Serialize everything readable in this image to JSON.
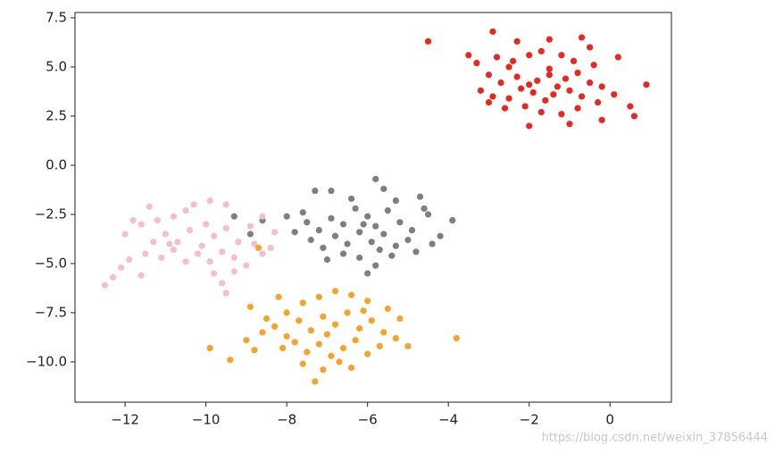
{
  "chart_data": {
    "type": "scatter",
    "xlim": [
      -13.24,
      1.52
    ],
    "ylim": [
      -12.05,
      7.77
    ],
    "xticks": [
      {
        "value": -12,
        "label": "−12"
      },
      {
        "value": -10,
        "label": "−10"
      },
      {
        "value": -8,
        "label": "−8"
      },
      {
        "value": -6,
        "label": "−6"
      },
      {
        "value": -4,
        "label": "−4"
      },
      {
        "value": -2,
        "label": "−2"
      },
      0
    ],
    "yticks": [
      7.5,
      {
        "value": 5,
        "label": "5.0"
      },
      2.5,
      {
        "value": 0,
        "label": "0.0"
      },
      {
        "value": -2.5,
        "label": "−2.5"
      },
      {
        "value": -5,
        "label": "−5.0"
      },
      {
        "value": -7.5,
        "label": "−7.5"
      },
      {
        "value": -10,
        "label": "−10.0"
      }
    ],
    "grid": false,
    "watermark": "https://blog.csdn.net/weixin_37856444",
    "series": [
      {
        "color": "#e8271e",
        "x": [
          -4.5,
          -2.9,
          -2.3,
          -1.5,
          -0.7,
          -3.5,
          -3.3,
          -2.8,
          -2.5,
          -2.0,
          -1.7,
          -1.2,
          -0.9,
          -0.4,
          0.2,
          -3.0,
          -2.7,
          -2.3,
          -2.0,
          -1.8,
          -1.5,
          -1.3,
          -1.1,
          -0.8,
          -0.5,
          -0.2,
          0.9,
          -3.2,
          -2.9,
          -2.5,
          -2.2,
          -1.9,
          -1.6,
          -1.4,
          -1.0,
          -0.7,
          -0.3,
          0.1,
          -2.6,
          -2.1,
          -1.7,
          -1.2,
          -0.8,
          -0.2,
          0.5,
          0.6,
          -2.0,
          -1.0,
          -3.0,
          -1.5,
          -2.4,
          -0.5
        ],
        "y": [
          6.3,
          6.8,
          6.3,
          6.4,
          6.5,
          5.6,
          5.2,
          5.5,
          5.0,
          5.6,
          5.8,
          5.6,
          5.3,
          5.1,
          5.5,
          4.6,
          4.2,
          4.5,
          4.1,
          4.3,
          4.6,
          4.0,
          4.4,
          4.7,
          4.2,
          4.0,
          4.1,
          3.8,
          3.5,
          3.4,
          3.9,
          3.7,
          3.3,
          3.6,
          3.8,
          3.5,
          3.2,
          3.6,
          2.9,
          3.0,
          2.7,
          2.6,
          2.9,
          2.3,
          3.0,
          2.5,
          2.0,
          2.1,
          3.2,
          4.9,
          5.3,
          6.0
        ]
      },
      {
        "color": "#7f7f7f",
        "x": [
          -9.3,
          -8.9,
          -8.6,
          -8.0,
          -7.6,
          -7.3,
          -6.9,
          -6.4,
          -5.8,
          -5.6,
          -5.3,
          -4.7,
          -4.5,
          -3.9,
          -7.5,
          -7.2,
          -6.9,
          -6.6,
          -6.3,
          -6.0,
          -5.8,
          -5.5,
          -5.2,
          -4.9,
          -4.6,
          -4.2,
          -7.4,
          -7.1,
          -6.8,
          -6.5,
          -6.2,
          -5.9,
          -5.6,
          -5.3,
          -5.0,
          -4.8,
          -7.0,
          -6.6,
          -6.2,
          -5.8,
          -5.4,
          -6.0,
          -4.4,
          -7.8,
          -6.1,
          -5.7
        ],
        "y": [
          -2.6,
          -3.5,
          -2.8,
          -2.6,
          -2.4,
          -1.3,
          -1.3,
          -1.7,
          -0.7,
          -1.2,
          -1.8,
          -1.6,
          -2.5,
          -2.8,
          -2.9,
          -3.3,
          -2.7,
          -3.0,
          -2.2,
          -2.6,
          -3.1,
          -2.3,
          -2.9,
          -3.3,
          -2.2,
          -3.6,
          -3.8,
          -4.2,
          -3.6,
          -4.0,
          -3.4,
          -3.9,
          -3.5,
          -4.1,
          -3.8,
          -4.4,
          -4.8,
          -4.5,
          -4.7,
          -5.1,
          -4.6,
          -5.5,
          -4.0,
          -3.4,
          -3.0,
          -4.3
        ]
      },
      {
        "color": "#f4bfcb",
        "x": [
          -12.5,
          -12.3,
          -12.1,
          -11.9,
          -12.0,
          -11.8,
          -11.6,
          -11.4,
          -11.2,
          -10.8,
          -10.5,
          -10.3,
          -9.9,
          -9.5,
          -11.3,
          -11.0,
          -10.7,
          -10.4,
          -10.1,
          -9.8,
          -9.5,
          -9.2,
          -8.9,
          -8.6,
          -8.3,
          -11.5,
          -11.1,
          -10.8,
          -10.5,
          -10.2,
          -9.9,
          -9.6,
          -9.3,
          -9.0,
          -8.6,
          -8.4,
          -11.6,
          -9.8,
          -9.6,
          -9.5,
          -10.0,
          -10.9,
          -9.3,
          -8.8
        ],
        "y": [
          -6.1,
          -5.7,
          -5.2,
          -4.8,
          -3.5,
          -2.8,
          -3.0,
          -2.1,
          -2.8,
          -2.6,
          -2.3,
          -2.0,
          -1.8,
          -2.0,
          -3.9,
          -3.5,
          -3.9,
          -3.3,
          -4.1,
          -3.6,
          -3.2,
          -3.9,
          -3.1,
          -2.6,
          -3.4,
          -4.5,
          -4.7,
          -4.3,
          -4.9,
          -4.5,
          -4.9,
          -4.4,
          -4.7,
          -5.1,
          -4.5,
          -4.2,
          -5.6,
          -5.5,
          -6.0,
          -6.5,
          -3.0,
          -4.0,
          -5.4,
          -4.0
        ]
      },
      {
        "color": "#f4a428",
        "x": [
          -9.9,
          -9.4,
          -9.0,
          -8.9,
          -8.5,
          -8.2,
          -8.0,
          -7.6,
          -7.2,
          -6.8,
          -6.4,
          -6.0,
          -5.5,
          -5.2,
          -8.6,
          -8.3,
          -8.0,
          -7.7,
          -7.4,
          -7.1,
          -6.8,
          -6.5,
          -6.2,
          -5.9,
          -5.6,
          -5.3,
          -5.0,
          -8.1,
          -7.8,
          -7.5,
          -7.2,
          -6.9,
          -6.6,
          -6.3,
          -6.0,
          -5.7,
          -7.6,
          -7.1,
          -7.3,
          -6.7,
          -6.4,
          -8.8,
          -3.8,
          -8.7,
          -7.0,
          -6.1
        ],
        "y": [
          -9.3,
          -9.9,
          -8.9,
          -7.2,
          -7.8,
          -6.7,
          -7.5,
          -7.0,
          -6.7,
          -6.4,
          -6.6,
          -6.9,
          -7.3,
          -7.8,
          -8.5,
          -8.2,
          -8.7,
          -7.9,
          -8.4,
          -7.7,
          -8.1,
          -7.5,
          -8.3,
          -7.9,
          -8.5,
          -8.8,
          -9.2,
          -9.3,
          -9.0,
          -9.5,
          -9.1,
          -9.7,
          -9.3,
          -8.9,
          -9.6,
          -9.2,
          -10.1,
          -10.4,
          -11.0,
          -10.0,
          -10.3,
          -9.4,
          -8.8,
          -4.2,
          -8.6,
          -7.4
        ]
      }
    ]
  }
}
